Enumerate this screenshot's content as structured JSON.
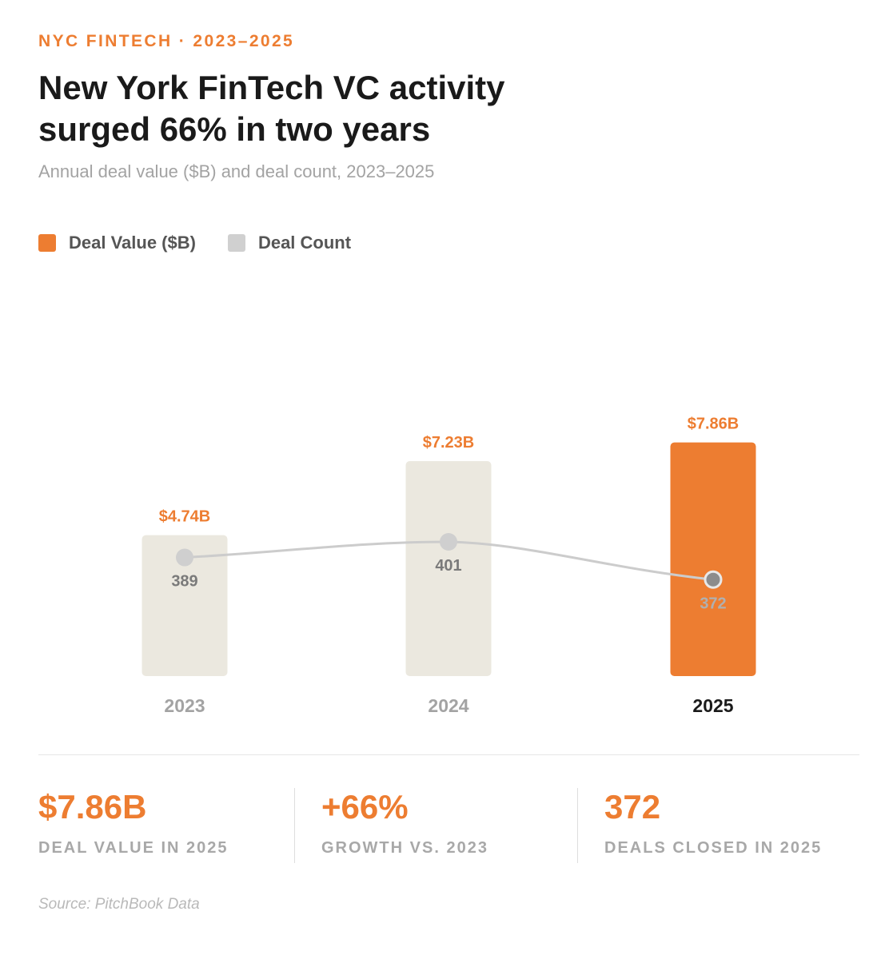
{
  "header": {
    "eyebrow": "NYC FINTECH · 2023–2025",
    "title_line1": "New York FinTech VC activity",
    "title_line2": "surged 66% in two years",
    "subtitle": "Annual deal value ($B) and deal count, 2023–2025"
  },
  "legend": {
    "items": [
      {
        "label": "Deal Value ($B)",
        "color": "#ED7D31"
      },
      {
        "label": "Deal Count",
        "color": "#d0d0d0"
      }
    ]
  },
  "colors": {
    "accent": "#ED7D31",
    "bar_muted": "#ebe8df",
    "line": "#cccccc",
    "point": "#cfcfcf",
    "point_highlight": "#8c8c8c",
    "muted_text": "#a3a3a3",
    "dark_text": "#1a1a1a"
  },
  "chart_data": {
    "type": "bar",
    "categories": [
      "2023",
      "2024",
      "2025"
    ],
    "highlight": "2025",
    "series": [
      {
        "name": "Deal Value ($B)",
        "type": "bar",
        "values": [
          4.74,
          7.23,
          7.86
        ],
        "labels": [
          "$4.74B",
          "$7.23B",
          "$7.86B"
        ]
      },
      {
        "name": "Deal Count",
        "type": "line",
        "values": [
          389,
          401,
          372
        ],
        "labels": [
          "389",
          "401",
          "372"
        ]
      }
    ],
    "legend_position": "top-left",
    "grid": false
  },
  "stats": [
    {
      "value": "$7.86B",
      "label": "DEAL VALUE IN 2025"
    },
    {
      "value": "+66%",
      "label": "GROWTH VS. 2023"
    },
    {
      "value": "372",
      "label": "DEALS CLOSED IN 2025"
    }
  ],
  "footer": {
    "source": "Source: PitchBook Data"
  }
}
